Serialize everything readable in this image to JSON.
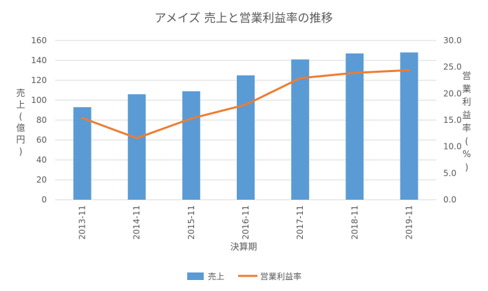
{
  "chart_data": {
    "type": "bar+line",
    "title": "アメイズ 売上と営業利益率の推移",
    "xlabel": "決算期",
    "ylabel_left": [
      "売",
      "上",
      "(",
      "億",
      "円",
      ")"
    ],
    "ylabel_right": [
      "営",
      "業",
      "利",
      "益",
      "率",
      "(",
      "%",
      ")"
    ],
    "categories": [
      "2013-11",
      "2014-11",
      "2015-11",
      "2016-11",
      "2017-11",
      "2018-11",
      "2019-11"
    ],
    "series": [
      {
        "name": "売上",
        "type": "bar",
        "axis": "left",
        "color": "#5b9bd5",
        "values": [
          93,
          106,
          109,
          125,
          141,
          147,
          148
        ]
      },
      {
        "name": "営業利益率",
        "type": "line",
        "axis": "right",
        "color": "#ed7d31",
        "values": [
          15.4,
          11.6,
          15.3,
          17.9,
          22.9,
          23.9,
          24.4
        ]
      }
    ],
    "ylim_left": [
      0,
      160
    ],
    "yticks_left": [
      "0",
      "20",
      "40",
      "60",
      "80",
      "100",
      "120",
      "140",
      "160"
    ],
    "ylim_right": [
      0,
      30
    ],
    "yticks_right": [
      "0.0",
      "5.0",
      "10.0",
      "15.0",
      "20.0",
      "25.0",
      "30.0"
    ],
    "grid": true,
    "legend_position": "bottom"
  }
}
